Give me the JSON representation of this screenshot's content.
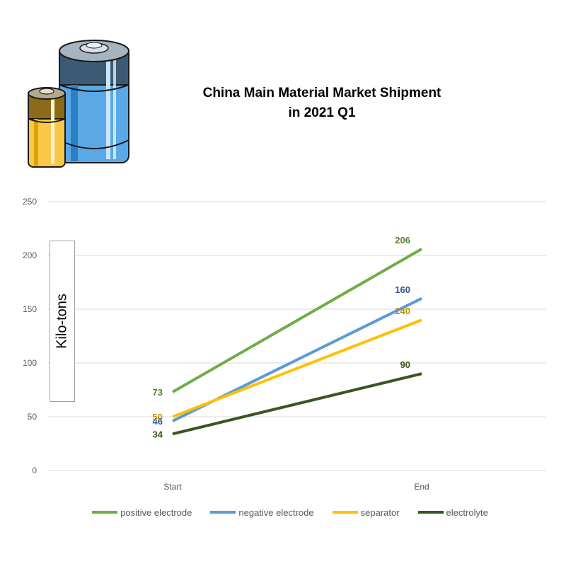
{
  "chart_data": {
    "type": "line",
    "title_line1": "China Main Material Market Shipment",
    "title_line2": "in 2021 Q1",
    "ylabel": "Kilo-tons",
    "categories": [
      "Start",
      "End"
    ],
    "ylim": [
      0,
      250
    ],
    "yticks": [
      "0",
      "50",
      "100",
      "150",
      "200",
      "250"
    ],
    "ytick_values": [
      0,
      50,
      100,
      150,
      200,
      250
    ],
    "grid": true,
    "legend_position": "bottom",
    "series": [
      {
        "name": "positive electrode",
        "values": [
          73,
          206
        ],
        "color": "#70ad47",
        "label_color": "#548235"
      },
      {
        "name": "negative electrode",
        "values": [
          46,
          160
        ],
        "color": "#5b9bd5",
        "label_color": "#2f5597"
      },
      {
        "name": "separator",
        "values": [
          50,
          140
        ],
        "color": "#ffc000",
        "label_color": "#bf9000"
      },
      {
        "name": "electrolyte",
        "values": [
          34,
          90
        ],
        "color": "#375623",
        "label_color": "#375623"
      }
    ]
  }
}
